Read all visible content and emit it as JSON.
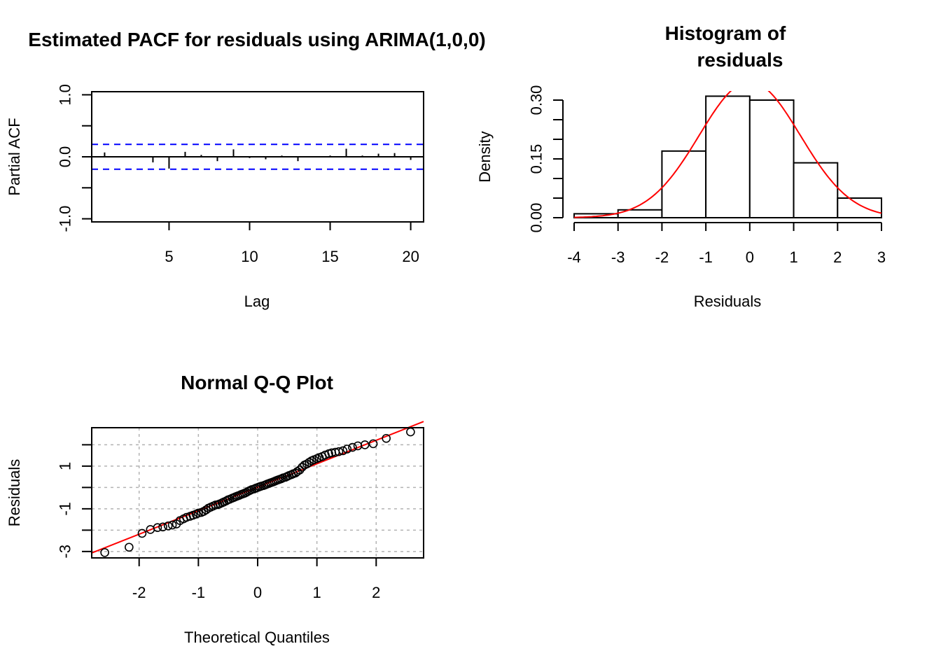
{
  "chart_data": [
    {
      "type": "bar",
      "subtype": "pacf",
      "title": "Estimated PACF for residuals using ARIMA(1,0,0)",
      "xlabel": "Lag",
      "ylabel": "Partial ACF",
      "xlim": [
        0.2,
        20.8
      ],
      "ylim": [
        -1.05,
        1.05
      ],
      "xticks": [
        5,
        10,
        15,
        20
      ],
      "yticks": [
        -1.0,
        -0.5,
        0.0,
        0.5,
        1.0
      ],
      "ytick_labels": [
        "-1.0",
        "",
        "0.0",
        "",
        "1.0"
      ],
      "lags": [
        1,
        2,
        3,
        4,
        5,
        6,
        7,
        8,
        9,
        10,
        11,
        12,
        13,
        14,
        15,
        16,
        17,
        18,
        19,
        20
      ],
      "values": [
        0.07,
        0.01,
        -0.01,
        -0.09,
        -0.19,
        0.08,
        0.03,
        -0.07,
        0.12,
        -0.02,
        -0.04,
        0.02,
        -0.07,
        -0.01,
        0.02,
        0.13,
        0.02,
        0.05,
        0.06,
        -0.05
      ],
      "conf_limit": 0.2,
      "conf_color": "#0000ff"
    },
    {
      "type": "bar",
      "subtype": "histogram",
      "title_lines": [
        "Histogram of",
        "residuals"
      ],
      "xlabel": "Residuals",
      "ylabel": "Density",
      "xlim": [
        -4,
        3
      ],
      "ylim": [
        0,
        0.3
      ],
      "xticks": [
        -4,
        -3,
        -2,
        -1,
        0,
        1,
        2,
        3
      ],
      "yticks": [
        0.0,
        0.05,
        0.1,
        0.15,
        0.2,
        0.25,
        0.3
      ],
      "ytick_labels": [
        "0.00",
        "",
        "",
        "0.15",
        "",
        "",
        "0.30"
      ],
      "bin_edges": [
        -4,
        -3,
        -2,
        -1,
        0,
        1,
        2,
        3
      ],
      "densities": [
        0.01,
        0.02,
        0.17,
        0.31,
        0.3,
        0.14,
        0.05
      ],
      "curve": {
        "type": "normal",
        "mean": 0.0,
        "sd": 1.15,
        "color": "#ff0000"
      }
    },
    {
      "type": "scatter",
      "subtype": "qqplot",
      "title": "Normal Q-Q Plot",
      "xlabel": "Theoretical Quantiles",
      "ylabel": "Residuals",
      "xlim": [
        -2.8,
        2.8
      ],
      "ylim": [
        -3.3,
        2.8
      ],
      "xticks": [
        -2,
        -1,
        0,
        1,
        2
      ],
      "yticks": [
        -3,
        -2,
        -1,
        0,
        1,
        2
      ],
      "ytick_labels": [
        "-3",
        "",
        "-1",
        "",
        "1",
        ""
      ],
      "grid": true,
      "line": {
        "intercept": 0.01,
        "slope": 1.1,
        "color": "#ff0000"
      },
      "points": [
        [
          -2.58,
          -3.05
        ],
        [
          -2.17,
          -2.8
        ],
        [
          -1.95,
          -2.15
        ],
        [
          -1.81,
          -1.97
        ],
        [
          -1.69,
          -1.88
        ],
        [
          -1.6,
          -1.85
        ],
        [
          -1.51,
          -1.8
        ],
        [
          -1.44,
          -1.76
        ],
        [
          -1.37,
          -1.71
        ],
        [
          -1.31,
          -1.55
        ],
        [
          -1.25,
          -1.47
        ],
        [
          -1.2,
          -1.4
        ],
        [
          -1.14,
          -1.35
        ],
        [
          -1.09,
          -1.3
        ],
        [
          -1.04,
          -1.25
        ],
        [
          -1.0,
          -1.2
        ],
        [
          -0.95,
          -1.17
        ],
        [
          -0.91,
          -1.12
        ],
        [
          -0.87,
          -1.05
        ],
        [
          -0.83,
          -0.97
        ],
        [
          -0.79,
          -0.92
        ],
        [
          -0.75,
          -0.87
        ],
        [
          -0.71,
          -0.82
        ],
        [
          -0.67,
          -0.8
        ],
        [
          -0.64,
          -0.77
        ],
        [
          -0.6,
          -0.72
        ],
        [
          -0.57,
          -0.68
        ],
        [
          -0.53,
          -0.63
        ],
        [
          -0.5,
          -0.58
        ],
        [
          -0.47,
          -0.55
        ],
        [
          -0.43,
          -0.5
        ],
        [
          -0.4,
          -0.47
        ],
        [
          -0.37,
          -0.43
        ],
        [
          -0.34,
          -0.4
        ],
        [
          -0.31,
          -0.37
        ],
        [
          -0.28,
          -0.33
        ],
        [
          -0.25,
          -0.3
        ],
        [
          -0.22,
          -0.27
        ],
        [
          -0.19,
          -0.23
        ],
        [
          -0.16,
          -0.18
        ],
        [
          -0.13,
          -0.14
        ],
        [
          -0.1,
          -0.1
        ],
        [
          -0.06,
          -0.07
        ],
        [
          -0.03,
          -0.03
        ],
        [
          0.0,
          0.0
        ],
        [
          0.03,
          0.03
        ],
        [
          0.06,
          0.06
        ],
        [
          0.1,
          0.09
        ],
        [
          0.13,
          0.12
        ],
        [
          0.16,
          0.16
        ],
        [
          0.19,
          0.19
        ],
        [
          0.22,
          0.22
        ],
        [
          0.25,
          0.25
        ],
        [
          0.28,
          0.28
        ],
        [
          0.31,
          0.32
        ],
        [
          0.34,
          0.35
        ],
        [
          0.37,
          0.38
        ],
        [
          0.4,
          0.41
        ],
        [
          0.43,
          0.45
        ],
        [
          0.47,
          0.48
        ],
        [
          0.5,
          0.52
        ],
        [
          0.53,
          0.56
        ],
        [
          0.57,
          0.6
        ],
        [
          0.6,
          0.64
        ],
        [
          0.64,
          0.68
        ],
        [
          0.67,
          0.75
        ],
        [
          0.71,
          0.82
        ],
        [
          0.75,
          0.95
        ],
        [
          0.79,
          1.05
        ],
        [
          0.83,
          1.1
        ],
        [
          0.87,
          1.18
        ],
        [
          0.91,
          1.25
        ],
        [
          0.95,
          1.3
        ],
        [
          1.0,
          1.35
        ],
        [
          1.04,
          1.4
        ],
        [
          1.09,
          1.45
        ],
        [
          1.14,
          1.52
        ],
        [
          1.2,
          1.58
        ],
        [
          1.25,
          1.62
        ],
        [
          1.31,
          1.65
        ],
        [
          1.37,
          1.68
        ],
        [
          1.44,
          1.72
        ],
        [
          1.51,
          1.8
        ],
        [
          1.6,
          1.88
        ],
        [
          1.69,
          1.95
        ],
        [
          1.81,
          2.0
        ],
        [
          1.95,
          2.05
        ],
        [
          2.17,
          2.3
        ],
        [
          2.58,
          2.6
        ]
      ]
    }
  ]
}
